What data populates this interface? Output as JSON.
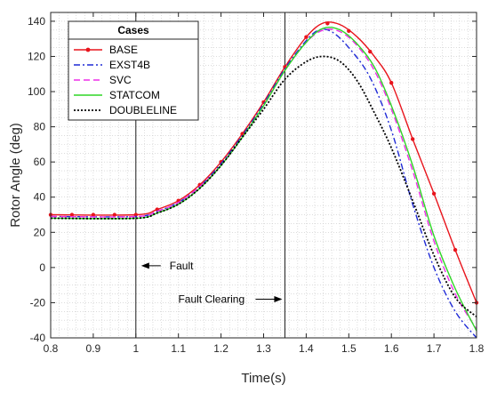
{
  "chart_data": {
    "type": "line",
    "xlabel": "Time(s)",
    "ylabel": "Rotor Angle (deg)",
    "xlim": [
      0.8,
      1.8
    ],
    "ylim": [
      -40,
      145
    ],
    "xticks": [
      0.8,
      0.9,
      1,
      1.1,
      1.2,
      1.3,
      1.4,
      1.5,
      1.6,
      1.7,
      1.8
    ],
    "xtick_labels": [
      "0.8",
      "0.9",
      "1",
      "1.1",
      "1.2",
      "1.3",
      "1.4",
      "1.5",
      "1.6",
      "1.7",
      "1.8"
    ],
    "yticks": [
      -40,
      -20,
      0,
      20,
      40,
      60,
      80,
      100,
      120,
      140
    ],
    "ytick_labels": [
      "-40",
      "-20",
      "0",
      "20",
      "40",
      "60",
      "80",
      "100",
      "120",
      "140"
    ],
    "grid": "on (major and minor dotted)",
    "legend": {
      "title": "Cases",
      "placement": "top-left",
      "entries": [
        "BASE",
        "EXST4B",
        "SVC",
        "STATCOM",
        "DOUBLELINE"
      ]
    },
    "series": [
      {
        "name": "BASE",
        "color": "#e8141c",
        "style": "solid-with-markers",
        "x": [
          0.8,
          1.0,
          1.05,
          1.1,
          1.15,
          1.2,
          1.25,
          1.3,
          1.35,
          1.4,
          1.44,
          1.48,
          1.52,
          1.56,
          1.6,
          1.65,
          1.7,
          1.75,
          1.8
        ],
        "y": [
          30,
          30,
          33,
          38,
          47,
          60,
          76,
          94,
          114,
          131,
          139,
          138,
          131,
          120,
          105,
          73,
          42,
          10,
          -20
        ]
      },
      {
        "name": "EXST4B",
        "color": "#1f2ad6",
        "style": "dash-dot",
        "x": [
          0.8,
          1.0,
          1.05,
          1.1,
          1.15,
          1.2,
          1.25,
          1.3,
          1.35,
          1.4,
          1.43,
          1.46,
          1.5,
          1.55,
          1.6,
          1.65,
          1.7,
          1.75,
          1.8
        ],
        "y": [
          29,
          29,
          32,
          37,
          46,
          59,
          75,
          93,
          113,
          129,
          135,
          134,
          125,
          108,
          78,
          36,
          0,
          -25,
          -40
        ]
      },
      {
        "name": "SVC",
        "color": "#ee2ee8",
        "style": "dashed",
        "x": [
          0.8,
          1.0,
          1.05,
          1.1,
          1.15,
          1.2,
          1.25,
          1.3,
          1.35,
          1.4,
          1.44,
          1.48,
          1.52,
          1.56,
          1.6,
          1.65,
          1.7,
          1.75,
          1.8
        ],
        "y": [
          29,
          29,
          32,
          37,
          46,
          58,
          74,
          92,
          112,
          128,
          135,
          134,
          126,
          112,
          90,
          55,
          15,
          -15,
          -35
        ]
      },
      {
        "name": "STATCOM",
        "color": "#2ed626",
        "style": "solid",
        "x": [
          0.8,
          1.0,
          1.05,
          1.1,
          1.15,
          1.2,
          1.25,
          1.3,
          1.35,
          1.4,
          1.44,
          1.48,
          1.52,
          1.56,
          1.6,
          1.65,
          1.7,
          1.75,
          1.8
        ],
        "y": [
          28,
          28,
          31,
          36,
          45,
          58,
          74,
          92,
          112,
          128,
          136,
          135,
          127,
          114,
          92,
          58,
          18,
          -12,
          -36
        ]
      },
      {
        "name": "DOUBLELINE",
        "color": "#000000",
        "style": "dotted",
        "x": [
          0.8,
          1.0,
          1.05,
          1.1,
          1.15,
          1.2,
          1.25,
          1.3,
          1.35,
          1.4,
          1.44,
          1.48,
          1.52,
          1.56,
          1.6,
          1.65,
          1.7,
          1.75,
          1.8
        ],
        "y": [
          28,
          28,
          31,
          36,
          45,
          58,
          74,
          90,
          107,
          117,
          120,
          117,
          106,
          88,
          68,
          38,
          7,
          -17,
          -28
        ]
      }
    ],
    "vertical_lines": [
      1.0,
      1.35
    ],
    "annotations": [
      {
        "text": "Fault",
        "x": 1.0,
        "y": 1
      },
      {
        "text": "Fault Clearing",
        "x": 1.35,
        "y": -18
      }
    ]
  }
}
